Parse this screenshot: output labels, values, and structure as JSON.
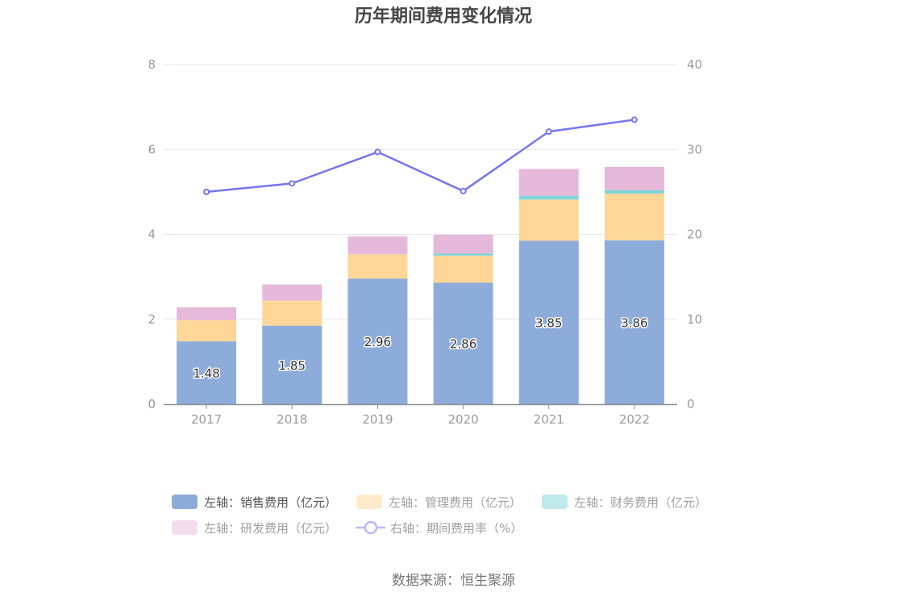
{
  "title": "历年期间费用变化情况",
  "source": "数据来源：恒生聚源",
  "colors": {
    "sales": "#8eacda",
    "admin": "#fed798",
    "finance": "#7fd6d8",
    "rnd": "#e6b9da",
    "rate_line": "#7676ee",
    "grid": "#e3e6f3",
    "axis": "#8a8f99"
  },
  "legend": [
    {
      "label": "左轴：销售费用（亿元）",
      "color": "#8eacda",
      "type": "box",
      "active": true
    },
    {
      "label": "左轴：管理费用（亿元）",
      "color": "#ffebca",
      "type": "box",
      "active": false
    },
    {
      "label": "左轴：财务费用（亿元）",
      "color": "#c0e9eb",
      "type": "box",
      "active": false
    },
    {
      "label": "左轴：研发费用（亿元）",
      "color": "#f3dded",
      "type": "box",
      "active": false
    },
    {
      "label": "右轴：期间费用率（%）",
      "color": "#b9b9f6",
      "type": "line",
      "active": false
    }
  ],
  "chart_data": {
    "type": "bar",
    "title": "历年期间费用变化情况",
    "categories": [
      "2017",
      "2018",
      "2019",
      "2020",
      "2021",
      "2022"
    ],
    "series": [
      {
        "name": "左轴：销售费用（亿元）",
        "type": "bar",
        "stack": "cost",
        "axis": "left",
        "values": [
          1.48,
          1.85,
          2.96,
          2.86,
          3.85,
          3.86
        ],
        "labels_shown": true
      },
      {
        "name": "左轴：管理费用（亿元）",
        "type": "bar",
        "stack": "cost",
        "axis": "left",
        "values": [
          0.5,
          0.59,
          0.57,
          0.64,
          0.97,
          1.1
        ]
      },
      {
        "name": "左轴：财务费用（亿元）",
        "type": "bar",
        "stack": "cost",
        "axis": "left",
        "values": [
          0.0,
          0.0,
          0.0,
          0.05,
          0.09,
          0.08
        ]
      },
      {
        "name": "左轴：研发费用（亿元）",
        "type": "bar",
        "stack": "cost",
        "axis": "left",
        "values": [
          0.3,
          0.38,
          0.42,
          0.44,
          0.63,
          0.55
        ]
      },
      {
        "name": "右轴：期间费用率（%）",
        "type": "line",
        "axis": "right",
        "values": [
          25.0,
          26.0,
          29.7,
          25.1,
          32.1,
          33.5
        ]
      }
    ],
    "left_axis": {
      "ticks": [
        0,
        2,
        4,
        6,
        8
      ],
      "ylim": [
        0,
        8
      ]
    },
    "right_axis": {
      "ticks": [
        0,
        10,
        20,
        30,
        40
      ],
      "ylim": [
        0,
        40
      ]
    },
    "xlabel": "",
    "ylabel": "",
    "grid": true,
    "legend_position": "bottom",
    "source": "数据来源：恒生聚源"
  }
}
